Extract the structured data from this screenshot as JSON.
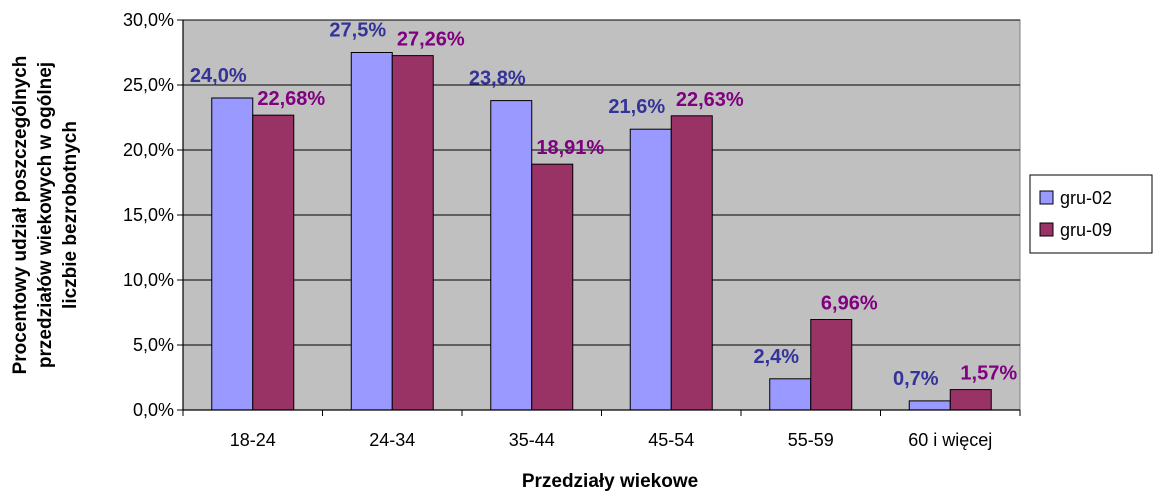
{
  "chart_data": {
    "type": "bar",
    "title": "",
    "xlabel": "Przedziały wiekowe",
    "ylabel_lines": [
      "Procentowy udział poszczególnych",
      "przedziałów wiekowych w ogólnej",
      "liczbie bezrobotnych"
    ],
    "categories": [
      "18-24",
      "24-34",
      "35-44",
      "45-54",
      "55-59",
      "60 i więcej"
    ],
    "ylim": [
      0,
      30
    ],
    "yticks": [
      0,
      5,
      10,
      15,
      20,
      25,
      30
    ],
    "ytick_labels": [
      "0,0%",
      "5,0%",
      "10,0%",
      "15,0%",
      "20,0%",
      "25,0%",
      "30,0%"
    ],
    "grid": true,
    "plot_background": "#c0c0c0",
    "legend_position": "right",
    "series": [
      {
        "name": "gru-02",
        "color": "#9999ff",
        "label_color": "#333399",
        "values": [
          24.0,
          27.5,
          23.8,
          21.6,
          2.4,
          0.7
        ],
        "labels": [
          "24,0%",
          "27,5%",
          "23,8%",
          "21,6%",
          "2,4%",
          "0,7%"
        ]
      },
      {
        "name": "gru-09",
        "color": "#993366",
        "label_color": "#800080",
        "values": [
          22.68,
          27.26,
          18.91,
          22.63,
          6.96,
          1.57
        ],
        "labels": [
          "22,68%",
          "27,26%",
          "18,91%",
          "22,63%",
          "6,96%",
          "1,57%"
        ]
      }
    ]
  }
}
